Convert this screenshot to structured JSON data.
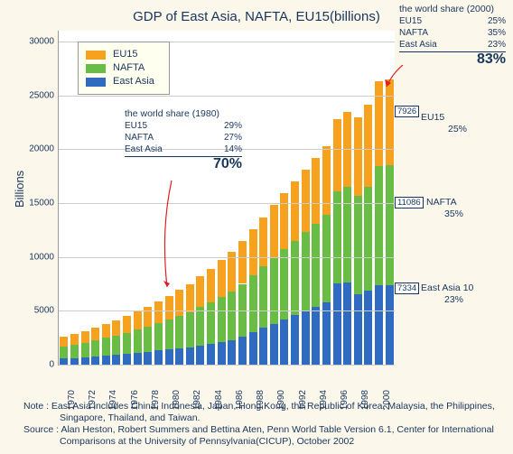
{
  "title": "GDP of East Asia, NAFTA, EU15(billions)",
  "ylabel": "Billions",
  "ylim": [
    0,
    31000
  ],
  "yticks": [
    0,
    5000,
    10000,
    15000,
    20000,
    25000,
    30000
  ],
  "xtick_step": 2,
  "colors": {
    "east_asia": "#2f6bc1",
    "nafta": "#69bd45",
    "eu15": "#f6a21f",
    "background": "#fcf7eb",
    "plot_bg": "#ffffff",
    "text": "#17365d",
    "grid": "#cccccc",
    "legend_bg": "#ffffef",
    "arrow": "#e02020"
  },
  "years": [
    1970,
    1971,
    1972,
    1973,
    1974,
    1975,
    1976,
    1977,
    1978,
    1979,
    1980,
    1981,
    1982,
    1983,
    1984,
    1985,
    1986,
    1987,
    1988,
    1989,
    1990,
    1991,
    1992,
    1993,
    1994,
    1995,
    1996,
    1997,
    1998,
    1999,
    2000,
    2001
  ],
  "series": {
    "east_asia": [
      550,
      600,
      680,
      770,
      840,
      900,
      1000,
      1100,
      1200,
      1300,
      1400,
      1500,
      1600,
      1750,
      1900,
      2100,
      2300,
      2600,
      3000,
      3400,
      3800,
      4200,
      4600,
      5000,
      5400,
      5800,
      7500,
      7600,
      6500,
      6900,
      7334,
      7334
    ],
    "nafta": [
      1150,
      1250,
      1350,
      1500,
      1650,
      1800,
      1950,
      2150,
      2350,
      2550,
      2800,
      3050,
      3300,
      3600,
      3900,
      4200,
      4500,
      4900,
      5300,
      5700,
      6100,
      6500,
      6900,
      7300,
      7700,
      8100,
      8600,
      8900,
      9200,
      9600,
      11086,
      11186
    ],
    "eu15": [
      900,
      1000,
      1100,
      1200,
      1300,
      1400,
      1550,
      1700,
      1850,
      2000,
      2200,
      2400,
      2600,
      2850,
      3100,
      3400,
      3700,
      4000,
      4300,
      4600,
      4900,
      5200,
      5500,
      5800,
      6100,
      6400,
      6700,
      7000,
      7300,
      7600,
      7926,
      7926
    ]
  },
  "legend": {
    "items": [
      {
        "label": "EU15",
        "color": "#f6a21f"
      },
      {
        "label": "NAFTA",
        "color": "#69bd45"
      },
      {
        "label": "East Asia",
        "color": "#2f6bc1"
      }
    ]
  },
  "share_1980": {
    "header": "the world share (1980)",
    "rows": [
      {
        "label": "EU15",
        "value": "29%"
      },
      {
        "label": "NAFTA",
        "value": "27%"
      },
      {
        "label": "East Asia",
        "value": "14%"
      }
    ],
    "total": "70%"
  },
  "share_2000": {
    "header": "the world share (2000)",
    "rows": [
      {
        "label": "EU15",
        "value": "25%"
      },
      {
        "label": "NAFTA",
        "value": "35%"
      },
      {
        "label": "East Asia",
        "value": "23%"
      }
    ],
    "total": "83%"
  },
  "right_values": {
    "eu15": "7926",
    "nafta": "11086",
    "east_asia": "7334"
  },
  "right_labels": {
    "eu15": {
      "name": "EU15",
      "pct": "25%"
    },
    "nafta": {
      "name": "NAFTA",
      "pct": "35%"
    },
    "east_asia": {
      "name": "East Asia 10",
      "pct": "23%"
    }
  },
  "notes": {
    "note": "Note : East Asia includes China, Indonesia, Japan, Hong Kong, the Republic of Korea, Malaysia, the Philippines, Singapore, Thailand, and Taiwan.",
    "source": "Source : Alan Heston, Robert Summers and Bettina Aten, Penn World Table Version 6.1, Center for International Comparisons at the University of Pennsylvania(CICUP), October 2002"
  }
}
